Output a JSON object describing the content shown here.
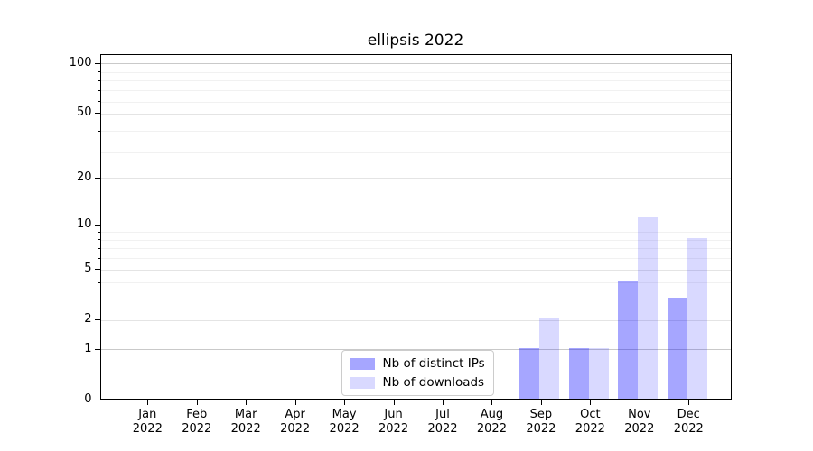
{
  "chart_data": {
    "type": "bar",
    "title": "ellipsis 2022",
    "categories": [
      "Jan 2022",
      "Feb 2022",
      "Mar 2022",
      "Apr 2022",
      "May 2022",
      "Jun 2022",
      "Jul 2022",
      "Aug 2022",
      "Sep 2022",
      "Oct 2022",
      "Nov 2022",
      "Dec 2022"
    ],
    "series": [
      {
        "name": "Nb of distinct IPs",
        "color": "rgba(0,0,255,0.35)",
        "values": [
          0,
          0,
          0,
          0,
          0,
          0,
          0,
          0,
          1,
          1,
          4,
          3
        ]
      },
      {
        "name": "Nb of downloads",
        "color": "rgba(0,0,255,0.15)",
        "values": [
          0,
          0,
          0,
          0,
          0,
          0,
          0,
          0,
          2,
          1,
          11,
          8
        ]
      }
    ],
    "y_axis": {
      "scale": "log10(1+y)",
      "major_ticks": [
        0,
        1,
        2,
        5,
        10,
        20,
        50,
        100
      ],
      "emphasized_gridlines": [
        1,
        10,
        100
      ],
      "minor_gridlines": [
        3,
        4,
        6,
        7,
        8,
        9,
        29,
        39,
        59,
        69,
        79,
        89
      ],
      "ylim": [
        0,
        113
      ]
    },
    "grid": "horizontal",
    "legend": {
      "position": "lower center",
      "items": [
        "Nb of distinct IPs",
        "Nb of downloads"
      ]
    },
    "colors": {
      "bar_distinct_ips": "rgba(0,0,255,0.35)",
      "bar_downloads": "rgba(0,0,255,0.15)",
      "grid_emphasized": "#c9c9c9",
      "grid_regular": "#e4e4e4",
      "grid_minor": "#f1f1f1",
      "axis": "#000000",
      "background": "#ffffff"
    }
  }
}
